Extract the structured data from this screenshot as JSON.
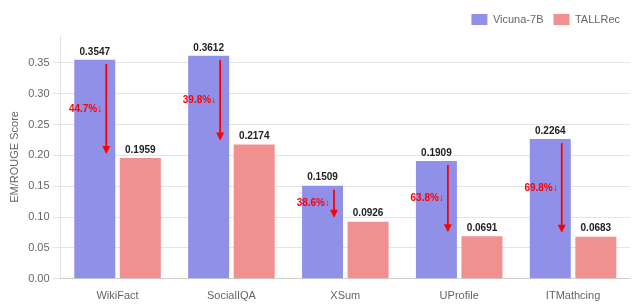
{
  "chart_data": {
    "type": "bar",
    "categories": [
      "WikiFact",
      "SocialIQA",
      "XSum",
      "UProfile",
      "ITMathcing"
    ],
    "series": [
      {
        "name": "Vicuna-7B",
        "color": "#9090e8",
        "values": [
          0.3547,
          0.3612,
          0.1509,
          0.1909,
          0.2264
        ]
      },
      {
        "name": "TALLRec",
        "color": "#f09090",
        "values": [
          0.1959,
          0.2174,
          0.0926,
          0.0691,
          0.0683
        ]
      }
    ],
    "y_label": "EM/ROUGE Score",
    "ylim": [
      0.0,
      0.395
    ],
    "yticks": [
      {
        "value": 0,
        "label": "0.00"
      },
      0.05,
      {
        "value": 0.1,
        "label": "0.10"
      },
      0.15,
      {
        "value": 0.2,
        "label": "0.20"
      },
      0.25,
      {
        "value": 0.3,
        "label": "0.30"
      },
      0.35
    ],
    "grid": true,
    "legend": "upper right",
    "data_labels": true,
    "annotations": [
      {
        "text": "44.7%↓",
        "color": "red"
      },
      {
        "text": "39.8%↓",
        "color": "red"
      },
      {
        "text": "38.6%↓",
        "color": "red"
      },
      {
        "text": "63.8%↓",
        "color": "red"
      },
      {
        "text": "69.8%↓",
        "color": "red"
      }
    ]
  }
}
